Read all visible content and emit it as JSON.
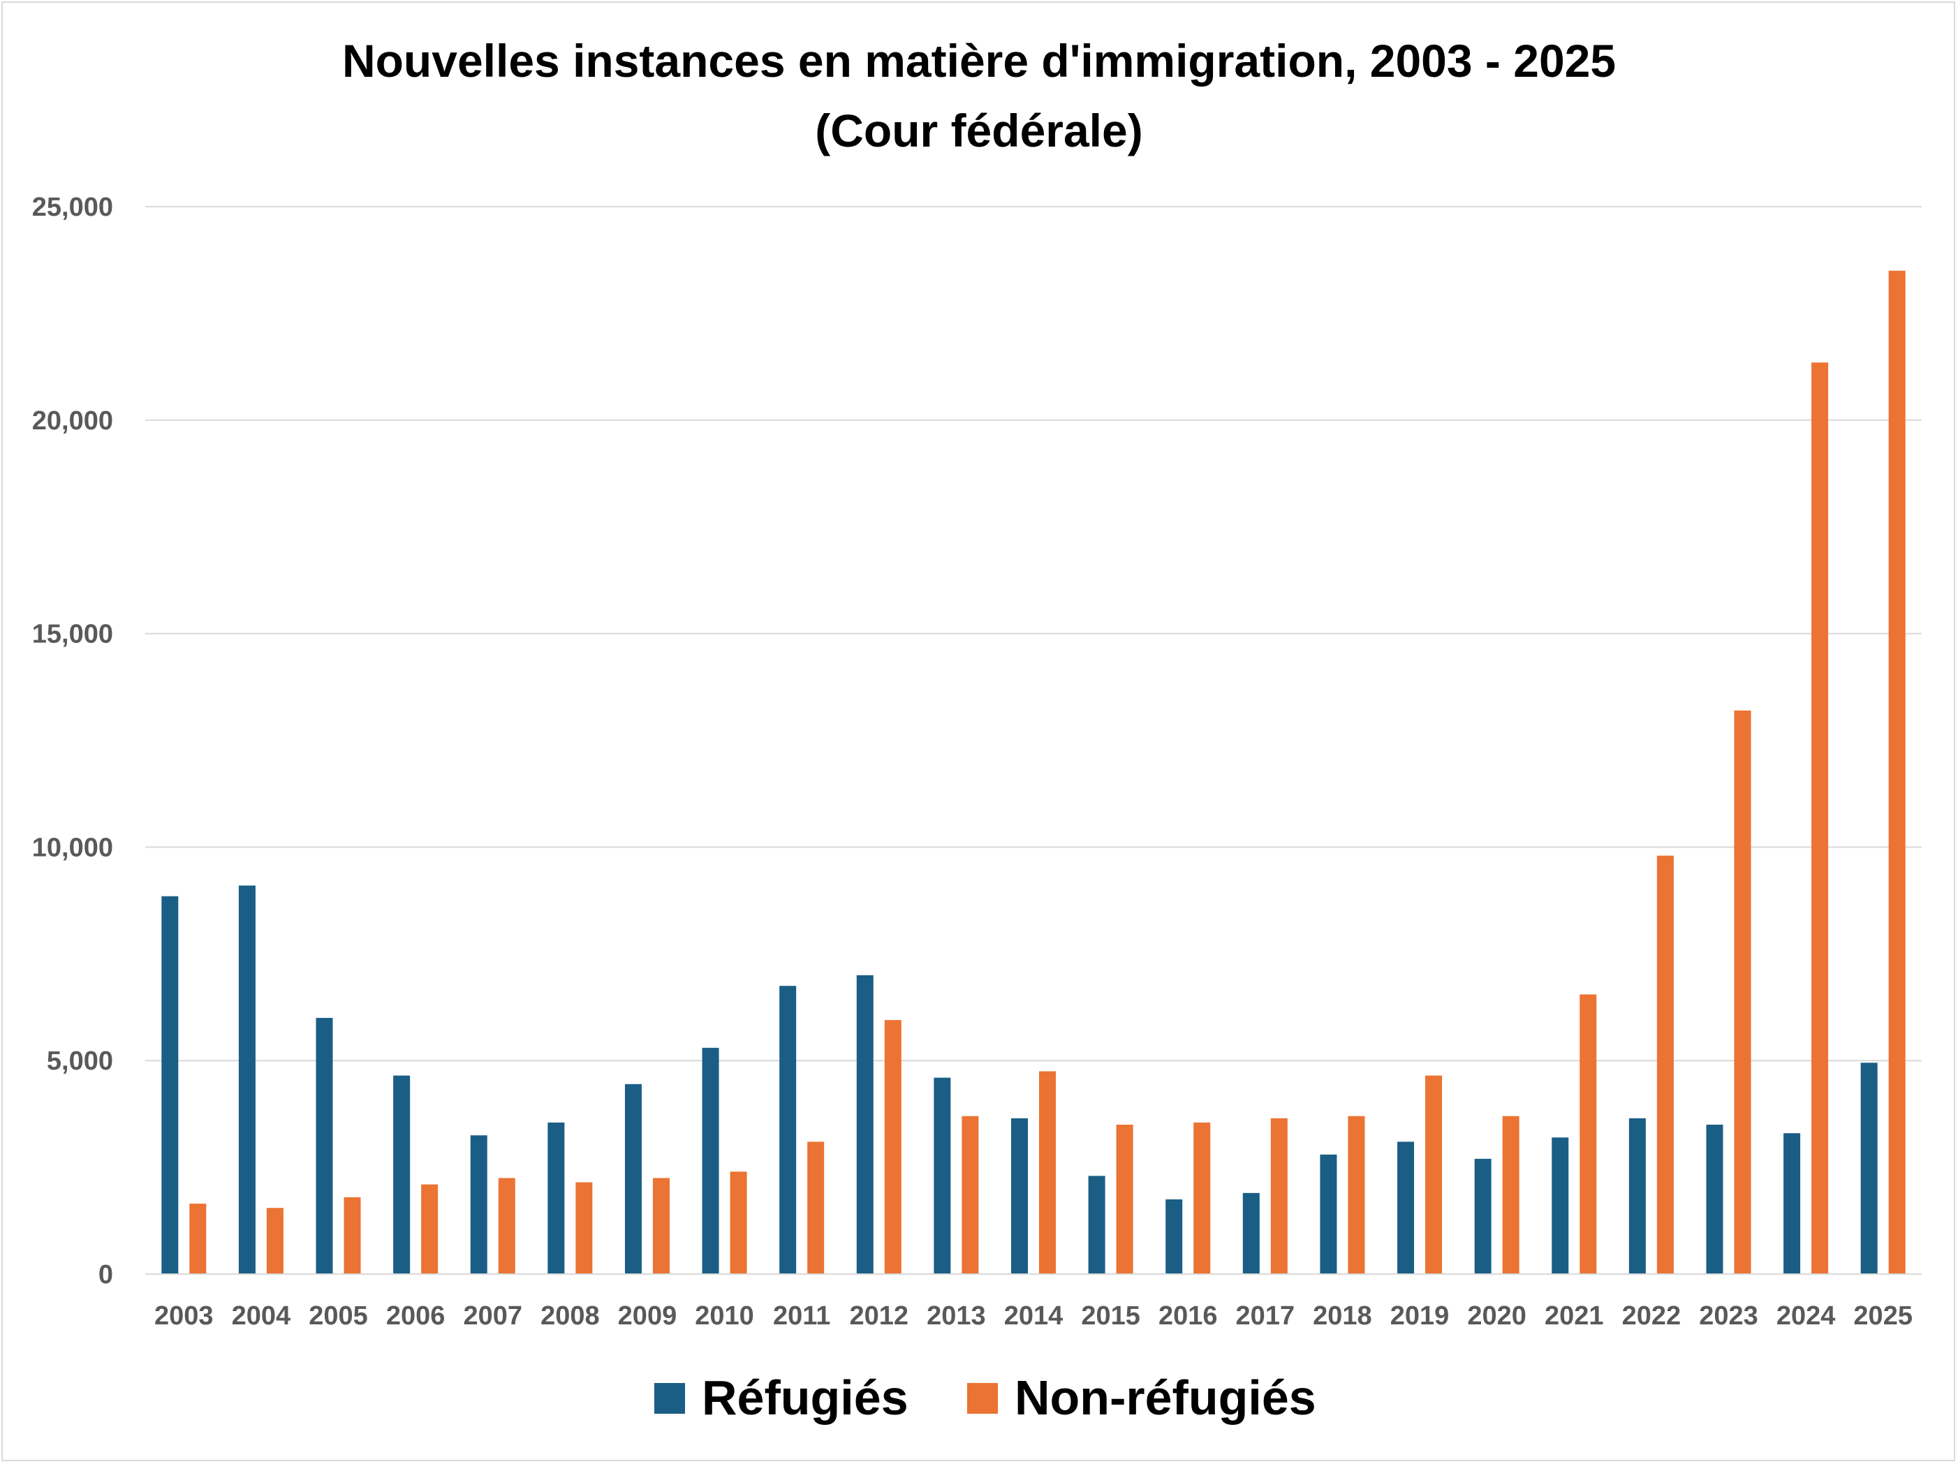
{
  "chart_data": {
    "type": "bar",
    "title": "Nouvelles instances en matière d'immigration, 2003 - 2025",
    "subtitle": "(Cour fédérale)",
    "xlabel": "",
    "ylabel": "",
    "ylim": [
      0,
      25000
    ],
    "yticks": [
      "0",
      "5,000",
      "10,000",
      "15,000",
      "20,000",
      "25,000"
    ],
    "categories": [
      "2003",
      "2004",
      "2005",
      "2006",
      "2007",
      "2008",
      "2009",
      "2010",
      "2011",
      "2012",
      "2013",
      "2014",
      "2015",
      "2016",
      "2017",
      "2018",
      "2019",
      "2020",
      "2021",
      "2022",
      "2023",
      "2024",
      "2025"
    ],
    "series": [
      {
        "name": "Réfugiés",
        "color": "#1a5e85",
        "values": [
          8850,
          9100,
          6000,
          4650,
          3250,
          3550,
          4450,
          5300,
          6750,
          7000,
          4600,
          3650,
          2300,
          1750,
          1900,
          2800,
          3100,
          2700,
          3200,
          3650,
          3500,
          3300,
          4950
        ]
      },
      {
        "name": "Non-réfugiés",
        "color": "#eb7333",
        "values": [
          1650,
          1550,
          1800,
          2100,
          2250,
          2150,
          2250,
          2400,
          3100,
          5950,
          3700,
          4750,
          3500,
          3550,
          3650,
          3700,
          4650,
          3700,
          6550,
          9800,
          13200,
          21350,
          23500
        ]
      }
    ],
    "grid": true,
    "legend_position": "bottom"
  }
}
